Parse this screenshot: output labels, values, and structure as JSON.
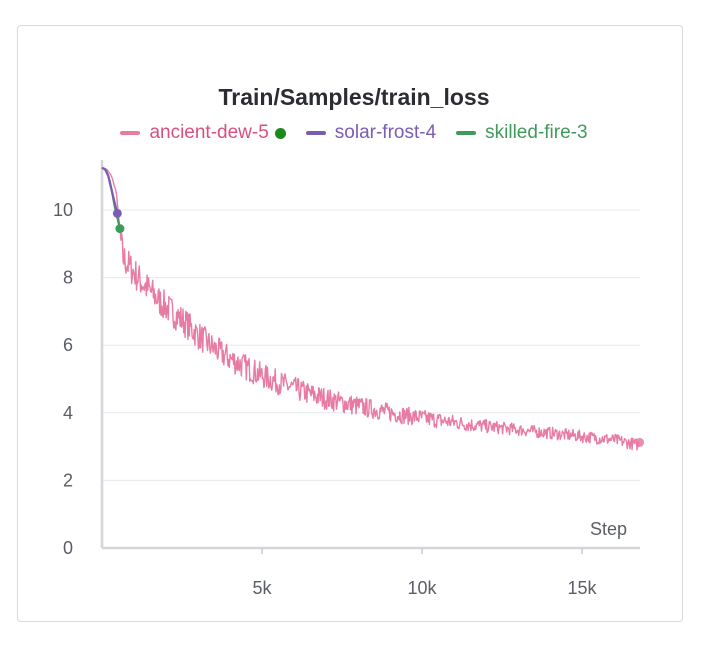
{
  "chart_data": {
    "type": "line",
    "title": "Train/Samples/train_loss",
    "xlabel": "Step",
    "ylabel": "",
    "xlim": [
      0,
      16800
    ],
    "ylim": [
      0,
      11.4
    ],
    "grid": true,
    "legend_position": "top",
    "x_ticks": [
      {
        "value": 5000,
        "label": "5k"
      },
      {
        "value": 10000,
        "label": "10k"
      },
      {
        "value": 15000,
        "label": "15k"
      }
    ],
    "y_ticks": [
      {
        "value": 0,
        "label": "0"
      },
      {
        "value": 2,
        "label": "2"
      },
      {
        "value": 4,
        "label": "4"
      },
      {
        "value": 6,
        "label": "6"
      },
      {
        "value": 8,
        "label": "8"
      },
      {
        "value": 10,
        "label": "10"
      }
    ],
    "series": [
      {
        "name": "ancient-dew-5",
        "color": "#e87ba3",
        "marker_color": "#1a8a1a",
        "x": [
          0,
          150,
          300,
          450,
          550,
          650,
          800,
          1000,
          1200,
          1500,
          1800,
          2100,
          2500,
          3000,
          3500,
          4000,
          4500,
          5000,
          5500,
          6000,
          6500,
          7000,
          7500,
          8000,
          8500,
          9000,
          9500,
          10000,
          10500,
          11000,
          11500,
          12000,
          12500,
          13000,
          13500,
          14000,
          14500,
          15000,
          15500,
          16000,
          16500,
          16800
        ],
        "y": [
          11.25,
          11.2,
          11.0,
          10.5,
          9.5,
          8.6,
          8.4,
          8.15,
          7.9,
          7.6,
          7.3,
          7.05,
          6.75,
          6.3,
          5.9,
          5.6,
          5.35,
          5.1,
          4.9,
          4.72,
          4.55,
          4.42,
          4.3,
          4.2,
          4.1,
          4.0,
          3.92,
          3.85,
          3.78,
          3.72,
          3.65,
          3.6,
          3.55,
          3.5,
          3.45,
          3.4,
          3.35,
          3.3,
          3.25,
          3.2,
          3.1,
          3.05
        ]
      },
      {
        "name": "solar-frost-4",
        "color": "#7b5cb5",
        "x": [
          0,
          100,
          200,
          300,
          400,
          480
        ],
        "y": [
          11.25,
          11.2,
          11.0,
          10.6,
          10.2,
          9.9
        ]
      },
      {
        "name": "skilled-fire-3",
        "color": "#3f9a5c",
        "x": [
          0,
          100,
          200,
          300,
          400,
          500,
          560
        ],
        "y": [
          11.25,
          11.2,
          11.0,
          10.6,
          10.1,
          9.7,
          9.45
        ]
      }
    ]
  }
}
